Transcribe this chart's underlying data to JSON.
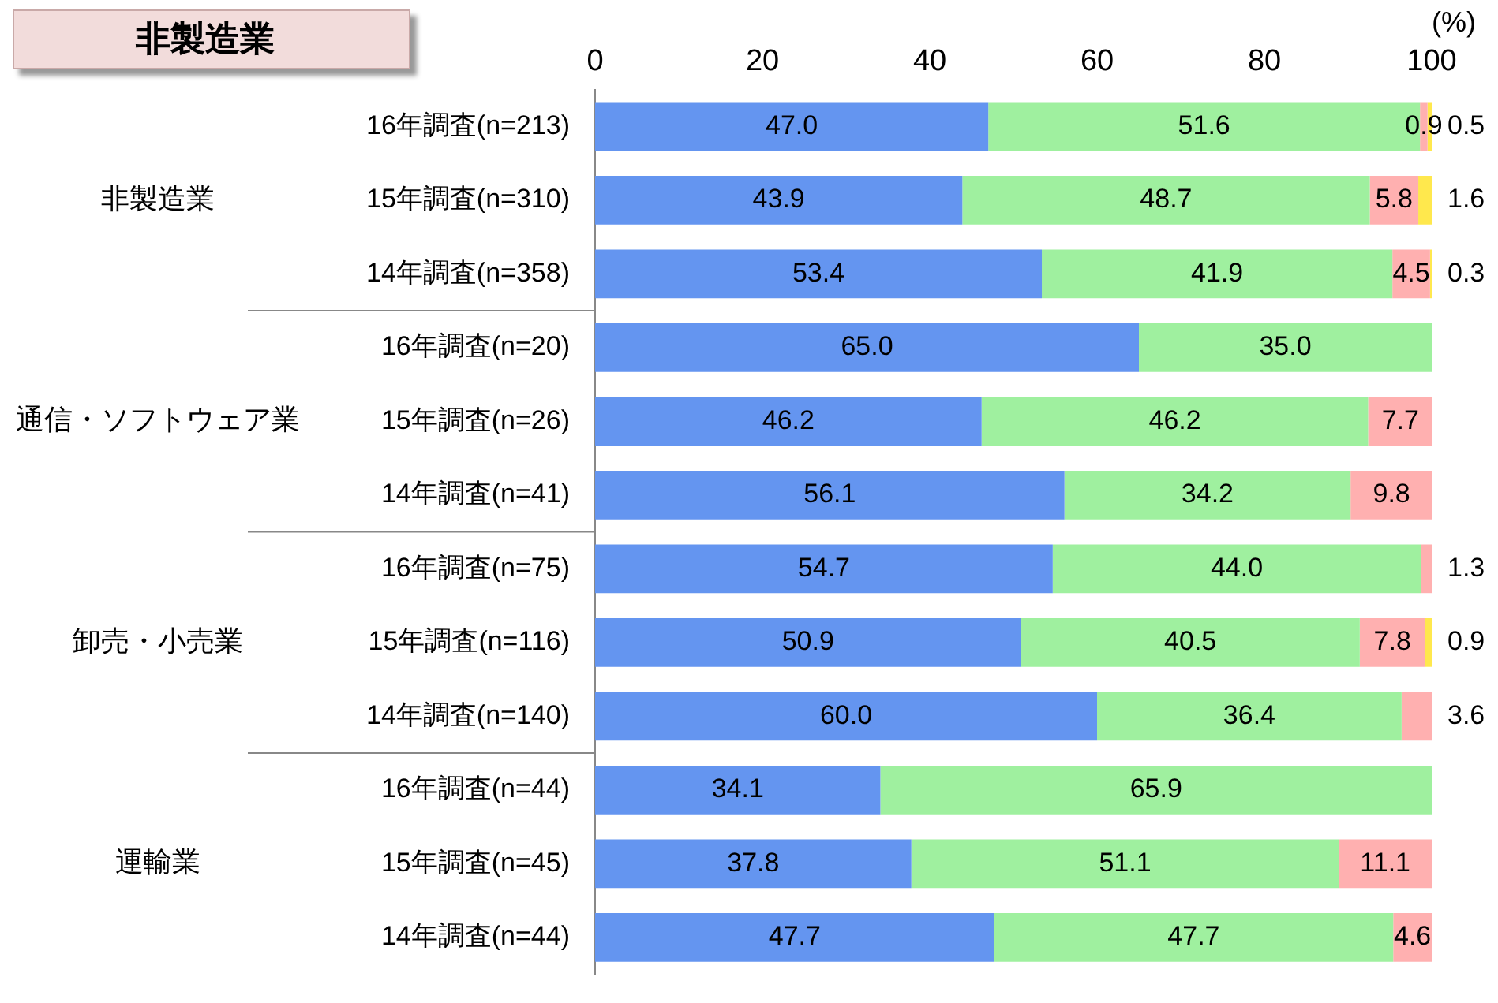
{
  "chart_data": {
    "type": "bar",
    "orientation": "horizontal",
    "stacked": true,
    "title": "非製造業",
    "xlabel": "(%)",
    "categories": [
      "16年調査(n=213)",
      "15年調査(n=310)",
      "14年調査(n=358)",
      "16年調査(n=20)",
      "15年調査(n=26)",
      "14年調査(n=41)",
      "16年調査(n=75)",
      "15年調査(n=116)",
      "14年調査(n=140)",
      "16年調査(n=44)",
      "15年調査(n=45)",
      "14年調査(n=44)"
    ],
    "annotations": [
      "非製造業",
      "通信・ソフトウェア業",
      "卸売・小売業",
      "運輸業"
    ],
    "xlim": [
      0,
      100
    ],
    "xticks": [
      0,
      20,
      40,
      60,
      80,
      100
    ],
    "grid": false,
    "legend": false,
    "series": [
      {
        "color": "#6495f0",
        "values": [
          47.0,
          43.9,
          53.4,
          65.0,
          46.2,
          56.1,
          54.7,
          50.9,
          60.0,
          34.1,
          37.8,
          47.7
        ],
        "value_labels": [
          "47.0",
          "43.9",
          "53.4",
          "65.0",
          "46.2",
          "56.1",
          "54.7",
          "50.9",
          "60.0",
          "34.1",
          "37.8",
          "47.7"
        ]
      },
      {
        "color": "#9ff09f",
        "values": [
          51.6,
          48.7,
          41.9,
          35.0,
          46.2,
          34.2,
          44.0,
          40.5,
          36.4,
          65.9,
          51.1,
          47.7
        ],
        "value_labels": [
          "51.6",
          "48.7",
          "41.9",
          "35.0",
          "46.2",
          "34.2",
          "44.0",
          "40.5",
          "36.4",
          "65.9",
          "51.1",
          "47.7"
        ]
      },
      {
        "color": "#ffb0b0",
        "values": [
          0.9,
          5.8,
          4.5,
          null,
          7.7,
          9.8,
          1.3,
          7.8,
          3.6,
          null,
          11.1,
          4.6
        ],
        "value_labels": [
          "0.9",
          "5.8",
          "4.5",
          null,
          "7.7",
          "9.8",
          "1.3",
          "7.8",
          "3.6",
          null,
          "11.1",
          "4.6"
        ]
      },
      {
        "color": "#ffe84d",
        "values": [
          0.5,
          1.6,
          0.3,
          null,
          null,
          null,
          null,
          0.9,
          null,
          null,
          null,
          null
        ],
        "value_labels": [
          "0.5",
          "1.6",
          "0.3",
          null,
          null,
          null,
          null,
          "0.9",
          null,
          null,
          null,
          null
        ]
      }
    ]
  }
}
